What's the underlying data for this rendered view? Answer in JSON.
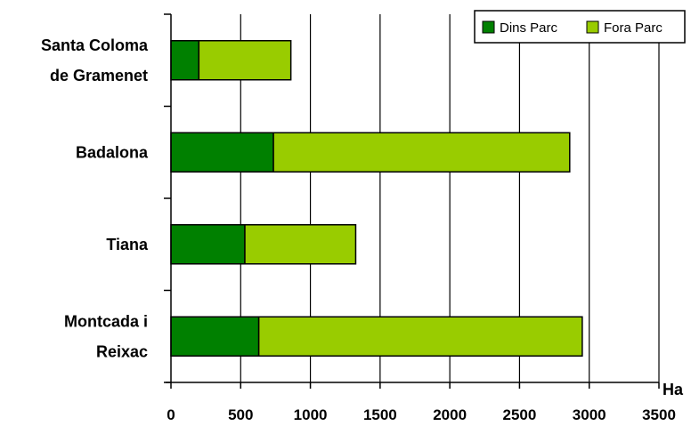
{
  "chart_data": {
    "type": "bar",
    "orientation": "horizontal",
    "stacked": true,
    "categories": [
      [
        "Santa Coloma",
        "de Gramenet"
      ],
      [
        "Badalona"
      ],
      [
        "Tiana"
      ],
      [
        "Montcada i",
        "Reixac"
      ]
    ],
    "series": [
      {
        "name": "Dins Parc",
        "color": "#008000",
        "values": [
          200,
          735,
          530,
          630
        ]
      },
      {
        "name": "Fora Parc",
        "color": "#99cc00",
        "values": [
          660,
          2125,
          795,
          2320
        ]
      }
    ],
    "xlabel": "Ha",
    "xlim": [
      0,
      3500
    ],
    "xticks": [
      0,
      500,
      1000,
      1500,
      2000,
      2500,
      3000,
      3500
    ],
    "grid": true,
    "legend": "top-right"
  }
}
